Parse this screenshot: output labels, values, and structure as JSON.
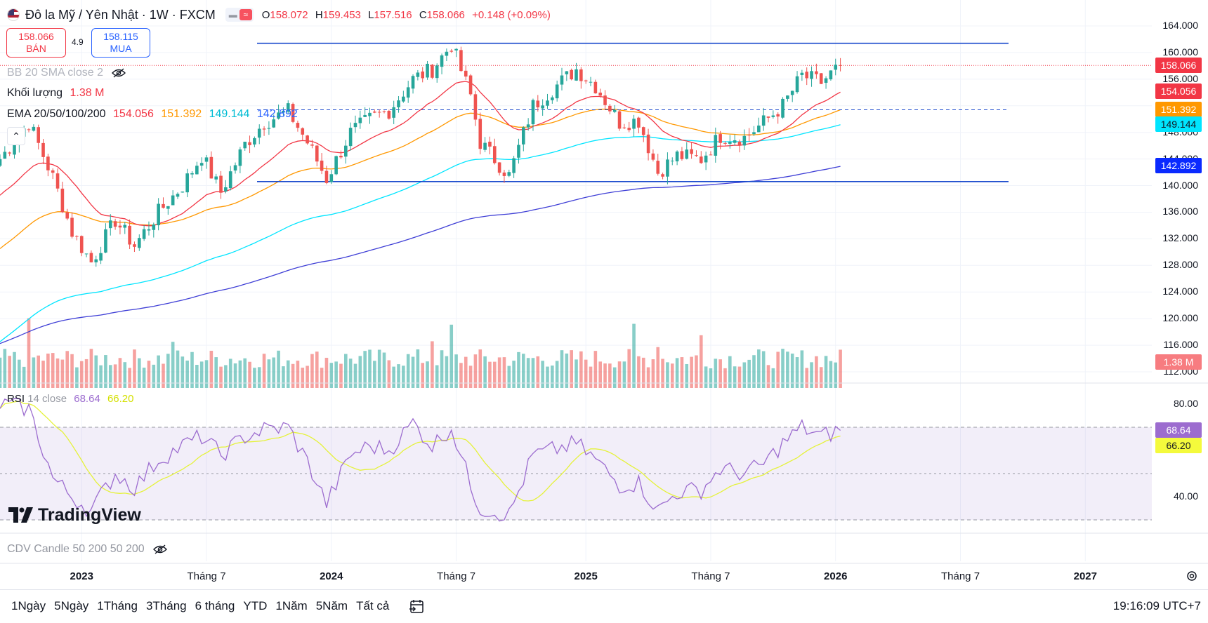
{
  "header": {
    "symbol_title": "Đô la Mỹ / Yên Nhật · 1W · FXCM",
    "flag_icon": "us-flag-icon",
    "ohlc": {
      "open_label": "O",
      "open": "158.072",
      "high_label": "H",
      "high": "159.453",
      "low_label": "L",
      "low": "157.516",
      "close_label": "C",
      "close": "158.066",
      "change": "+0.148 (+0.09%)"
    }
  },
  "trade": {
    "sell_price": "158.066",
    "sell_label": "BÁN",
    "spread": "4.9",
    "buy_price": "158.115",
    "buy_label": "MUA"
  },
  "indicators": {
    "bb": "BB 20 SMA close 2",
    "volume_label": "Khối lượng",
    "volume_value": "1.38 M",
    "ema_label": "EMA 20/50/100/200",
    "ema20": "154.056",
    "ema50": "151.392",
    "ema100": "149.144",
    "ema200": "142.892",
    "rsi_label": "RSI",
    "rsi_params": "14 close",
    "rsi_value": "68.64",
    "rsi_ma": "66.20",
    "cdv_label": "CDV Candle 50 200 50 200"
  },
  "price_axis": {
    "ticks": [
      "164.000",
      "160.000",
      "156.000",
      "152.000",
      "148.000",
      "144.000",
      "140.000",
      "136.000",
      "132.000",
      "128.000",
      "124.000",
      "120.000",
      "116.000",
      "112.000"
    ],
    "last_price_tag": "158.066",
    "ema_tags": [
      "154.056",
      "151.392",
      "149.144",
      "142.892"
    ],
    "volume_tag": "1.38 M"
  },
  "rsi_axis": {
    "ticks": [
      "80.00",
      "60.00",
      "40.00"
    ],
    "rsi_tag": "68.64",
    "rsi_ma_tag": "66.20"
  },
  "time_axis": {
    "labels": [
      {
        "text": "2023",
        "bold": true
      },
      {
        "text": "Tháng 7",
        "bold": false
      },
      {
        "text": "2024",
        "bold": true
      },
      {
        "text": "Tháng 7",
        "bold": false
      },
      {
        "text": "2025",
        "bold": true
      },
      {
        "text": "Tháng 7",
        "bold": false
      },
      {
        "text": "2026",
        "bold": true
      },
      {
        "text": "Tháng 7",
        "bold": false
      },
      {
        "text": "2027",
        "bold": true
      }
    ]
  },
  "bottom_bar": {
    "ranges": [
      "1Ngày",
      "5Ngày",
      "1Tháng",
      "3Tháng",
      "6 tháng",
      "YTD",
      "1Năm",
      "5Năm",
      "Tất cả"
    ],
    "clock": "19:16:09 UTC+7"
  },
  "logo_text": "TradingView",
  "colors": {
    "up": "#26a69a",
    "down": "#ef5350",
    "ema20": "#f23645",
    "ema50": "#ff9800",
    "ema100": "#00e5ff",
    "ema200": "#3f3fd6",
    "rsi": "#9c6ccf",
    "rsi_ma": "#e5f23a",
    "level_lines": "#1848cc"
  },
  "chart_data": {
    "type": "candlestick",
    "title": "Đô la Mỹ / Yên Nhật · 1W · FXCM",
    "interval": "1W",
    "price_range": [
      110,
      166
    ],
    "x_range": [
      "2022-09",
      "2027-02"
    ],
    "horizontal_levels": [
      161.4,
      140.6,
      151.4
    ],
    "last_price": 158.066,
    "price_path": [
      {
        "date": "2022-09-05",
        "close": 144.0
      },
      {
        "date": "2022-10-17",
        "close": 149.5
      },
      {
        "date": "2022-11-21",
        "close": 141.2
      },
      {
        "date": "2022-12-19",
        "close": 133.0
      },
      {
        "date": "2023-01-16",
        "close": 128.5
      },
      {
        "date": "2023-02-20",
        "close": 134.8
      },
      {
        "date": "2023-03-20",
        "close": 131.0
      },
      {
        "date": "2023-04-24",
        "close": 136.0
      },
      {
        "date": "2023-05-29",
        "close": 140.0
      },
      {
        "date": "2023-06-26",
        "close": 144.5
      },
      {
        "date": "2023-07-24",
        "close": 139.0
      },
      {
        "date": "2023-08-28",
        "close": 146.2
      },
      {
        "date": "2023-09-25",
        "close": 149.5
      },
      {
        "date": "2023-10-30",
        "close": 151.2
      },
      {
        "date": "2023-11-27",
        "close": 146.5
      },
      {
        "date": "2023-12-25",
        "close": 141.0
      },
      {
        "date": "2024-01-29",
        "close": 148.0
      },
      {
        "date": "2024-02-26",
        "close": 150.0
      },
      {
        "date": "2024-03-25",
        "close": 151.3
      },
      {
        "date": "2024-04-29",
        "close": 156.0
      },
      {
        "date": "2024-05-27",
        "close": 157.5
      },
      {
        "date": "2024-06-24",
        "close": 161.2
      },
      {
        "date": "2024-07-22",
        "close": 153.5
      },
      {
        "date": "2024-08-05",
        "close": 146.5
      },
      {
        "date": "2024-09-16",
        "close": 141.5
      },
      {
        "date": "2024-10-21",
        "close": 152.0
      },
      {
        "date": "2024-11-18",
        "close": 154.5
      },
      {
        "date": "2024-12-23",
        "close": 157.5
      },
      {
        "date": "2025-01-20",
        "close": 155.0
      },
      {
        "date": "2025-02-24",
        "close": 149.5
      },
      {
        "date": "2025-03-24",
        "close": 149.8
      },
      {
        "date": "2025-04-21",
        "close": 142.0
      },
      {
        "date": "2025-05-19",
        "close": 144.5
      },
      {
        "date": "2025-06-23",
        "close": 144.0
      },
      {
        "date": "2025-07-21",
        "close": 147.5
      },
      {
        "date": "2025-08-25",
        "close": 147.2
      },
      {
        "date": "2025-09-22",
        "close": 149.5
      },
      {
        "date": "2025-10-20",
        "close": 152.0
      },
      {
        "date": "2025-11-17",
        "close": 156.5
      },
      {
        "date": "2025-12-15",
        "close": 155.5
      },
      {
        "date": "2026-01-12",
        "close": 158.066
      }
    ],
    "ema": [
      {
        "name": "EMA 20",
        "last": 154.056
      },
      {
        "name": "EMA 50",
        "last": 151.392
      },
      {
        "name": "EMA 100",
        "last": 149.144
      },
      {
        "name": "EMA 200",
        "last": 142.892
      }
    ],
    "volume": {
      "last": "1.38 M"
    },
    "rsi": {
      "length": 14,
      "range": [
        30,
        85
      ],
      "levels": [
        70,
        50,
        30
      ],
      "last": 68.64,
      "ma_last": 66.2,
      "path": [
        {
          "date": "2022-09-05",
          "rsi": 80
        },
        {
          "date": "2022-10-17",
          "rsi": 78
        },
        {
          "date": "2022-11-21",
          "rsi": 48
        },
        {
          "date": "2022-12-19",
          "rsi": 40
        },
        {
          "date": "2023-01-16",
          "rsi": 34
        },
        {
          "date": "2023-02-20",
          "rsi": 50
        },
        {
          "date": "2023-03-20",
          "rsi": 44
        },
        {
          "date": "2023-04-24",
          "rsi": 56
        },
        {
          "date": "2023-05-29",
          "rsi": 62
        },
        {
          "date": "2023-06-26",
          "rsi": 66
        },
        {
          "date": "2023-07-24",
          "rsi": 58
        },
        {
          "date": "2023-08-28",
          "rsi": 66
        },
        {
          "date": "2023-09-25",
          "rsi": 69
        },
        {
          "date": "2023-10-30",
          "rsi": 70
        },
        {
          "date": "2023-11-27",
          "rsi": 55
        },
        {
          "date": "2023-12-25",
          "rsi": 37
        },
        {
          "date": "2024-01-29",
          "rsi": 58
        },
        {
          "date": "2024-02-26",
          "rsi": 62
        },
        {
          "date": "2024-03-25",
          "rsi": 60
        },
        {
          "date": "2024-04-29",
          "rsi": 72
        },
        {
          "date": "2024-05-27",
          "rsi": 62
        },
        {
          "date": "2024-06-24",
          "rsi": 70
        },
        {
          "date": "2024-07-22",
          "rsi": 45
        },
        {
          "date": "2024-08-05",
          "rsi": 35
        },
        {
          "date": "2024-09-16",
          "rsi": 32
        },
        {
          "date": "2024-10-21",
          "rsi": 58
        },
        {
          "date": "2024-11-18",
          "rsi": 60
        },
        {
          "date": "2024-12-23",
          "rsi": 63
        },
        {
          "date": "2025-01-20",
          "rsi": 56
        },
        {
          "date": "2025-02-24",
          "rsi": 45
        },
        {
          "date": "2025-03-24",
          "rsi": 46
        },
        {
          "date": "2025-04-21",
          "rsi": 34
        },
        {
          "date": "2025-05-19",
          "rsi": 42
        },
        {
          "date": "2025-06-23",
          "rsi": 43
        },
        {
          "date": "2025-07-21",
          "rsi": 52
        },
        {
          "date": "2025-08-25",
          "rsi": 50
        },
        {
          "date": "2025-09-22",
          "rsi": 54
        },
        {
          "date": "2025-10-20",
          "rsi": 63
        },
        {
          "date": "2025-11-17",
          "rsi": 70
        },
        {
          "date": "2025-12-15",
          "rsi": 66
        },
        {
          "date": "2026-01-12",
          "rsi": 68.64
        }
      ]
    }
  }
}
